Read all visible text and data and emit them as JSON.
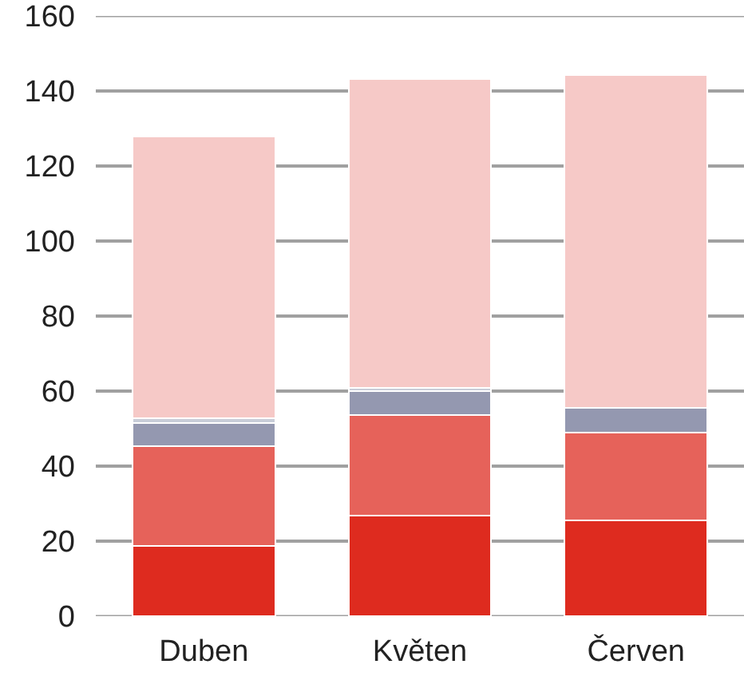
{
  "chart_data": {
    "type": "bar",
    "stacked": true,
    "categories": [
      "Duben",
      "Květen",
      "Červen"
    ],
    "series": [
      {
        "color": "#de2b1f",
        "values": [
          18.8,
          26.9,
          25.6
        ]
      },
      {
        "color": "#e6625a",
        "values": [
          26.6,
          26.7,
          23.4
        ]
      },
      {
        "color": "#9498b0",
        "values": [
          6.0,
          6.4,
          6.5
        ]
      },
      {
        "color": "#c8cdd8",
        "values": [
          1.3,
          0.9,
          null
        ]
      },
      {
        "color": "#f6c9c7",
        "values": [
          75.2,
          82.3,
          88.8
        ]
      }
    ],
    "ylim": [
      0,
      160
    ],
    "yticks": [
      0,
      20,
      40,
      60,
      80,
      100,
      120,
      140,
      160
    ],
    "grid": "y"
  }
}
